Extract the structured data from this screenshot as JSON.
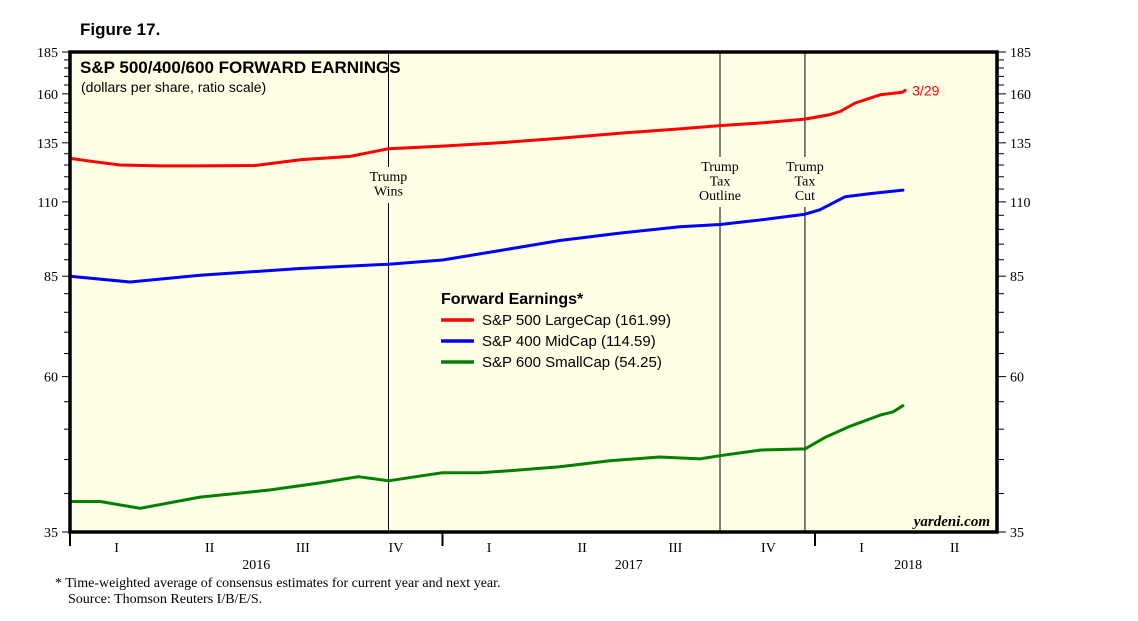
{
  "figure_label": "Figure 17.",
  "chart_data": {
    "type": "line",
    "title": "S&P 500/400/600 FORWARD EARNINGS",
    "subtitle": "(dollars per share, ratio scale)",
    "xlabel": "",
    "ylabel": "dollars per share",
    "yscale": "log",
    "ylim": [
      35,
      185
    ],
    "xlim": [
      2016.0,
      2018.5
    ],
    "y_ticks": [
      185,
      160,
      135,
      110,
      85,
      60,
      35
    ],
    "y_minor_step": 5,
    "grid": false,
    "x_quarter_labels": [
      {
        "label": "I",
        "x": 2016.125
      },
      {
        "label": "II",
        "x": 2016.375
      },
      {
        "label": "III",
        "x": 2016.625
      },
      {
        "label": "IV",
        "x": 2016.875
      },
      {
        "label": "I",
        "x": 2017.125
      },
      {
        "label": "II",
        "x": 2017.375
      },
      {
        "label": "III",
        "x": 2017.625
      },
      {
        "label": "IV",
        "x": 2017.875
      },
      {
        "label": "I",
        "x": 2018.125
      },
      {
        "label": "II",
        "x": 2018.375
      }
    ],
    "x_year_labels": [
      {
        "label": "2016",
        "x": 2016.5
      },
      {
        "label": "2017",
        "x": 2017.5
      },
      {
        "label": "2018",
        "x": 2018.25
      }
    ],
    "x_year_boundaries": [
      2016.0,
      2017.0,
      2018.0
    ],
    "legend": {
      "title": "Forward Earnings*",
      "placement": "center"
    },
    "series": [
      {
        "name": "S&P 500 LargeCap (161.99)",
        "color": "#ff0000",
        "end_label": "3/29",
        "x": [
          2016.0,
          2016.067,
          2016.134,
          2016.242,
          2016.349,
          2016.497,
          2016.618,
          2016.752,
          2016.855,
          2017.0,
          2017.153,
          2017.315,
          2017.476,
          2017.637,
          2017.745,
          2017.852,
          2017.973,
          2018.04,
          2018.067,
          2018.108,
          2018.175,
          2018.242,
          2018.236
        ],
        "values": [
          127.9,
          126.4,
          125.0,
          124.6,
          124.6,
          124.8,
          127.3,
          128.8,
          132.3,
          133.5,
          135.0,
          137.2,
          139.6,
          141.7,
          143.3,
          144.6,
          146.6,
          148.9,
          150.5,
          155.0,
          159.5,
          161.99,
          161.0
        ]
      },
      {
        "name": "S&P 400 MidCap (114.59)",
        "color": "#0000ff",
        "x": [
          2016.0,
          2016.161,
          2016.349,
          2016.618,
          2016.855,
          2017.0,
          2017.153,
          2017.315,
          2017.476,
          2017.637,
          2017.745,
          2017.852,
          2017.973,
          2018.013,
          2018.081,
          2018.148,
          2018.236
        ],
        "values": [
          85.0,
          83.3,
          85.3,
          87.3,
          88.6,
          89.9,
          92.9,
          96.2,
          98.7,
          100.9,
          101.7,
          103.3,
          105.4,
          107.0,
          112.0,
          113.2,
          114.59
        ]
      },
      {
        "name": "S&P 600 SmallCap (54.25)",
        "color": "#008000",
        "x": [
          2016.0,
          2016.081,
          2016.188,
          2016.349,
          2016.538,
          2016.672,
          2016.774,
          2016.855,
          2017.0,
          2017.1,
          2017.18,
          2017.315,
          2017.449,
          2017.583,
          2017.691,
          2017.745,
          2017.852,
          2017.973,
          2018.027,
          2018.094,
          2018.175,
          2018.21,
          2018.236
        ],
        "values": [
          38.9,
          38.9,
          38.0,
          39.5,
          40.5,
          41.5,
          42.4,
          41.8,
          43.0,
          43.0,
          43.3,
          43.9,
          44.8,
          45.4,
          45.1,
          45.6,
          46.5,
          46.7,
          48.6,
          50.5,
          52.5,
          53.1,
          54.25
        ]
      }
    ],
    "annotations": [
      {
        "label": "Trump Wins",
        "lines": [
          "Trump",
          "Wins"
        ],
        "x": 2016.855
      },
      {
        "label": "Trump Tax Outline",
        "lines": [
          "Trump",
          "Tax",
          "Outline"
        ],
        "x": 2017.745
      },
      {
        "label": "Trump Tax Cut",
        "lines": [
          "Trump",
          "Tax",
          "Cut"
        ],
        "x": 2017.973
      }
    ],
    "watermark": "yardeni.com"
  },
  "footnote": "*   Time-weighted average of consensus estimates for current year and next year.",
  "source": "Source: Thomson Reuters I/B/E/S."
}
